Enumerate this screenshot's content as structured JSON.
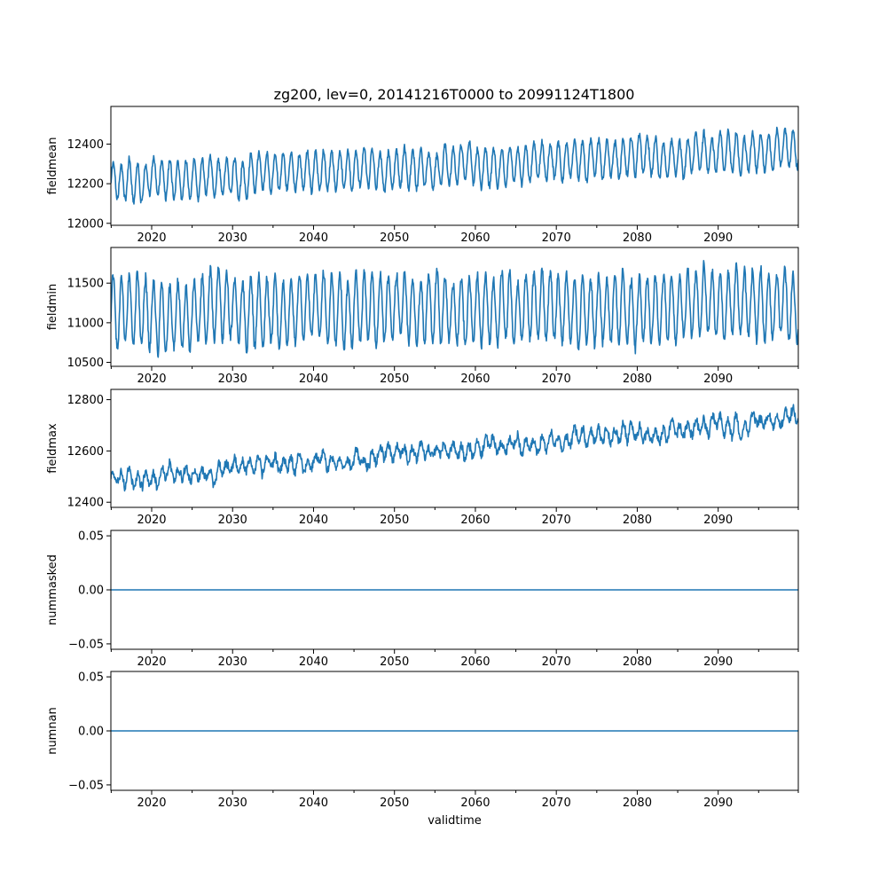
{
  "figure": {
    "title": "zg200, lev=0, 20141216T0000 to 20991124T1800"
  },
  "style": {
    "line_color": "#1f77b4"
  },
  "chart_data": [
    {
      "id": "fieldmean",
      "type": "line",
      "title": "zg200, lev=0, 20141216T0000 to 20991124T1800",
      "ylabel": "fieldmean",
      "xlabel": "",
      "xlim": [
        2014.96,
        2099.9
      ],
      "ylim": [
        11990,
        12590
      ],
      "xticks": [
        2020,
        2030,
        2040,
        2050,
        2060,
        2070,
        2080,
        2090
      ],
      "xtick_labels": [
        "2020",
        "2030",
        "2040",
        "2050",
        "2060",
        "2070",
        "2080",
        "2090"
      ],
      "yticks": [
        12000,
        12200,
        12400
      ],
      "ytick_labels": [
        "12000",
        "12200",
        "12400"
      ],
      "signal": {
        "base_start": 12210,
        "base_end": 12370,
        "seasonal_amplitude": 95,
        "noise": 28
      }
    },
    {
      "id": "fieldmin",
      "type": "line",
      "title": "",
      "ylabel": "fieldmin",
      "xlabel": "",
      "xlim": [
        2014.96,
        2099.9
      ],
      "ylim": [
        10450,
        11950
      ],
      "xticks": [
        2020,
        2030,
        2040,
        2050,
        2060,
        2070,
        2080,
        2090
      ],
      "xtick_labels": [
        "2020",
        "2030",
        "2040",
        "2050",
        "2060",
        "2070",
        "2080",
        "2090"
      ],
      "yticks": [
        10500,
        11000,
        11500
      ],
      "ytick_labels": [
        "10500",
        "11000",
        "11500"
      ],
      "signal": {
        "base_start": 11130,
        "base_end": 11230,
        "seasonal_amplitude": 420,
        "noise": 110
      }
    },
    {
      "id": "fieldmax",
      "type": "line",
      "title": "",
      "ylabel": "fieldmax",
      "xlabel": "",
      "xlim": [
        2014.96,
        2099.9
      ],
      "ylim": [
        12380,
        12840
      ],
      "xticks": [
        2020,
        2030,
        2040,
        2050,
        2060,
        2070,
        2080,
        2090
      ],
      "xtick_labels": [
        "2020",
        "2030",
        "2040",
        "2050",
        "2060",
        "2070",
        "2080",
        "2090"
      ],
      "yticks": [
        12400,
        12600,
        12800
      ],
      "ytick_labels": [
        "12400",
        "12600",
        "12800"
      ],
      "signal": {
        "base_start": 12490,
        "base_end": 12720,
        "seasonal_amplitude": 25,
        "noise": 30
      }
    },
    {
      "id": "nummasked",
      "type": "line",
      "title": "",
      "ylabel": "nummasked",
      "xlabel": "",
      "xlim": [
        2014.96,
        2099.9
      ],
      "ylim": [
        -0.055,
        0.055
      ],
      "xticks": [
        2020,
        2030,
        2040,
        2050,
        2060,
        2070,
        2080,
        2090
      ],
      "xtick_labels": [
        "2020",
        "2030",
        "2040",
        "2050",
        "2060",
        "2070",
        "2080",
        "2090"
      ],
      "yticks": [
        -0.05,
        0.0,
        0.05
      ],
      "ytick_labels": [
        "−0.05",
        "0.00",
        "0.05"
      ],
      "constant_value": 0.0
    },
    {
      "id": "numnan",
      "type": "line",
      "title": "",
      "ylabel": "numnan",
      "xlabel": "validtime",
      "xlim": [
        2014.96,
        2099.9
      ],
      "ylim": [
        -0.055,
        0.055
      ],
      "xticks": [
        2020,
        2030,
        2040,
        2050,
        2060,
        2070,
        2080,
        2090
      ],
      "xtick_labels": [
        "2020",
        "2030",
        "2040",
        "2050",
        "2060",
        "2070",
        "2080",
        "2090"
      ],
      "yticks": [
        -0.05,
        0.0,
        0.05
      ],
      "ytick_labels": [
        "−0.05",
        "0.00",
        "0.05"
      ],
      "constant_value": 0.0
    }
  ]
}
